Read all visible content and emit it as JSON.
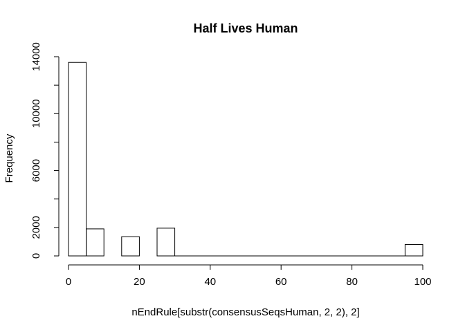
{
  "chart_data": {
    "type": "bar",
    "title": "Half Lives Human",
    "xlabel": "nEndRule[substr(consensusSeqsHuman, 2, 2), 2]",
    "ylabel": "Frequency",
    "xlim": [
      0,
      100
    ],
    "ylim": [
      0,
      14000
    ],
    "bin_width": 5,
    "bins": [
      {
        "x0": 0,
        "x1": 5,
        "count": 13600
      },
      {
        "x0": 5,
        "x1": 10,
        "count": 1900
      },
      {
        "x0": 15,
        "x1": 20,
        "count": 1350
      },
      {
        "x0": 25,
        "x1": 30,
        "count": 1950
      },
      {
        "x0": 95,
        "x1": 100,
        "count": 800
      }
    ],
    "empty_bin_edges": [
      30,
      95
    ],
    "x_ticks": [
      0,
      20,
      40,
      60,
      80,
      100
    ],
    "y_ticks": [
      0,
      2000,
      4000,
      6000,
      8000,
      10000,
      12000,
      14000
    ],
    "y_tick_labels": [
      "0",
      "2000",
      "6000",
      "10000",
      "14000"
    ],
    "grid": false
  }
}
